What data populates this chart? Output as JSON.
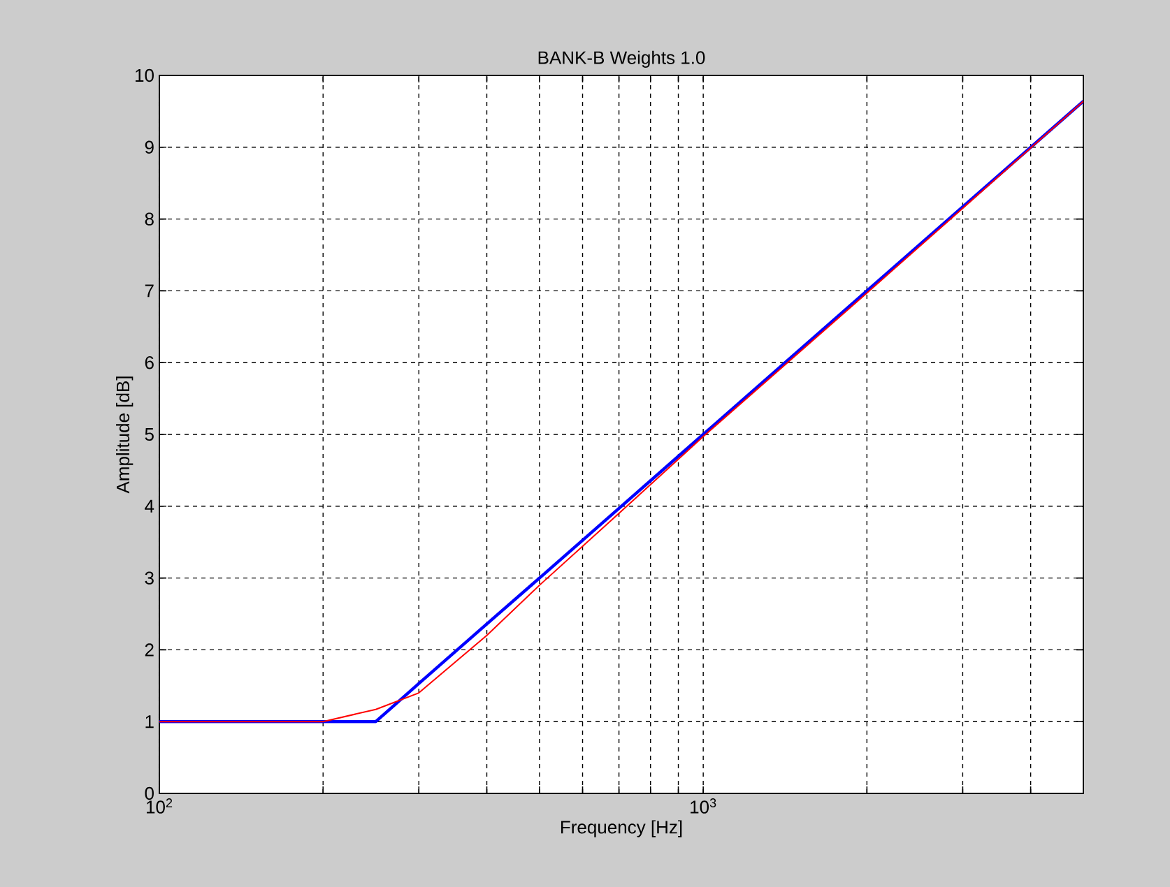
{
  "chart_data": {
    "type": "line",
    "title": "BANK-B Weights 1.0",
    "xlabel": "Frequency [Hz]",
    "ylabel": "Amplitude [dB]",
    "log": "x",
    "grid": true,
    "line_style": "solid",
    "xlim": [
      100,
      5000
    ],
    "ylim": [
      0,
      10
    ],
    "xticks": [
      {
        "value": 100,
        "label": "10$^{2}$"
      },
      {
        "value": 200,
        "label": null
      },
      {
        "value": 300,
        "label": null
      },
      {
        "value": 400,
        "label": null
      },
      {
        "value": 500,
        "label": null
      },
      {
        "value": 600,
        "label": null
      },
      {
        "value": 700,
        "label": null
      },
      {
        "value": 800,
        "label": null
      },
      {
        "value": 900,
        "label": null
      },
      {
        "value": 1000,
        "label": "10$^{3}$"
      },
      {
        "value": 2000,
        "label": null
      },
      {
        "value": 3000,
        "label": null
      },
      {
        "value": 4000,
        "label": null
      }
    ],
    "yticks": [
      0,
      1,
      2,
      3,
      4,
      5,
      6,
      7,
      8,
      9,
      10
    ],
    "series": [
      {
        "color": "#0000ff",
        "x": [
          100,
          250,
          300,
          400,
          500,
          700,
          1000,
          2000,
          3000,
          5000
        ],
        "values": [
          1,
          1,
          1.53,
          2.36,
          3.0,
          3.97,
          5.0,
          7.0,
          8.17,
          9.64
        ]
      },
      {
        "color": "#ff0000",
        "x": [
          100,
          200,
          250,
          300,
          400,
          500,
          700,
          1000,
          2000,
          3000,
          5000
        ],
        "values": [
          1,
          1,
          1.17,
          1.4,
          2.2,
          2.9,
          3.9,
          4.97,
          6.97,
          8.15,
          9.64
        ]
      }
    ]
  }
}
